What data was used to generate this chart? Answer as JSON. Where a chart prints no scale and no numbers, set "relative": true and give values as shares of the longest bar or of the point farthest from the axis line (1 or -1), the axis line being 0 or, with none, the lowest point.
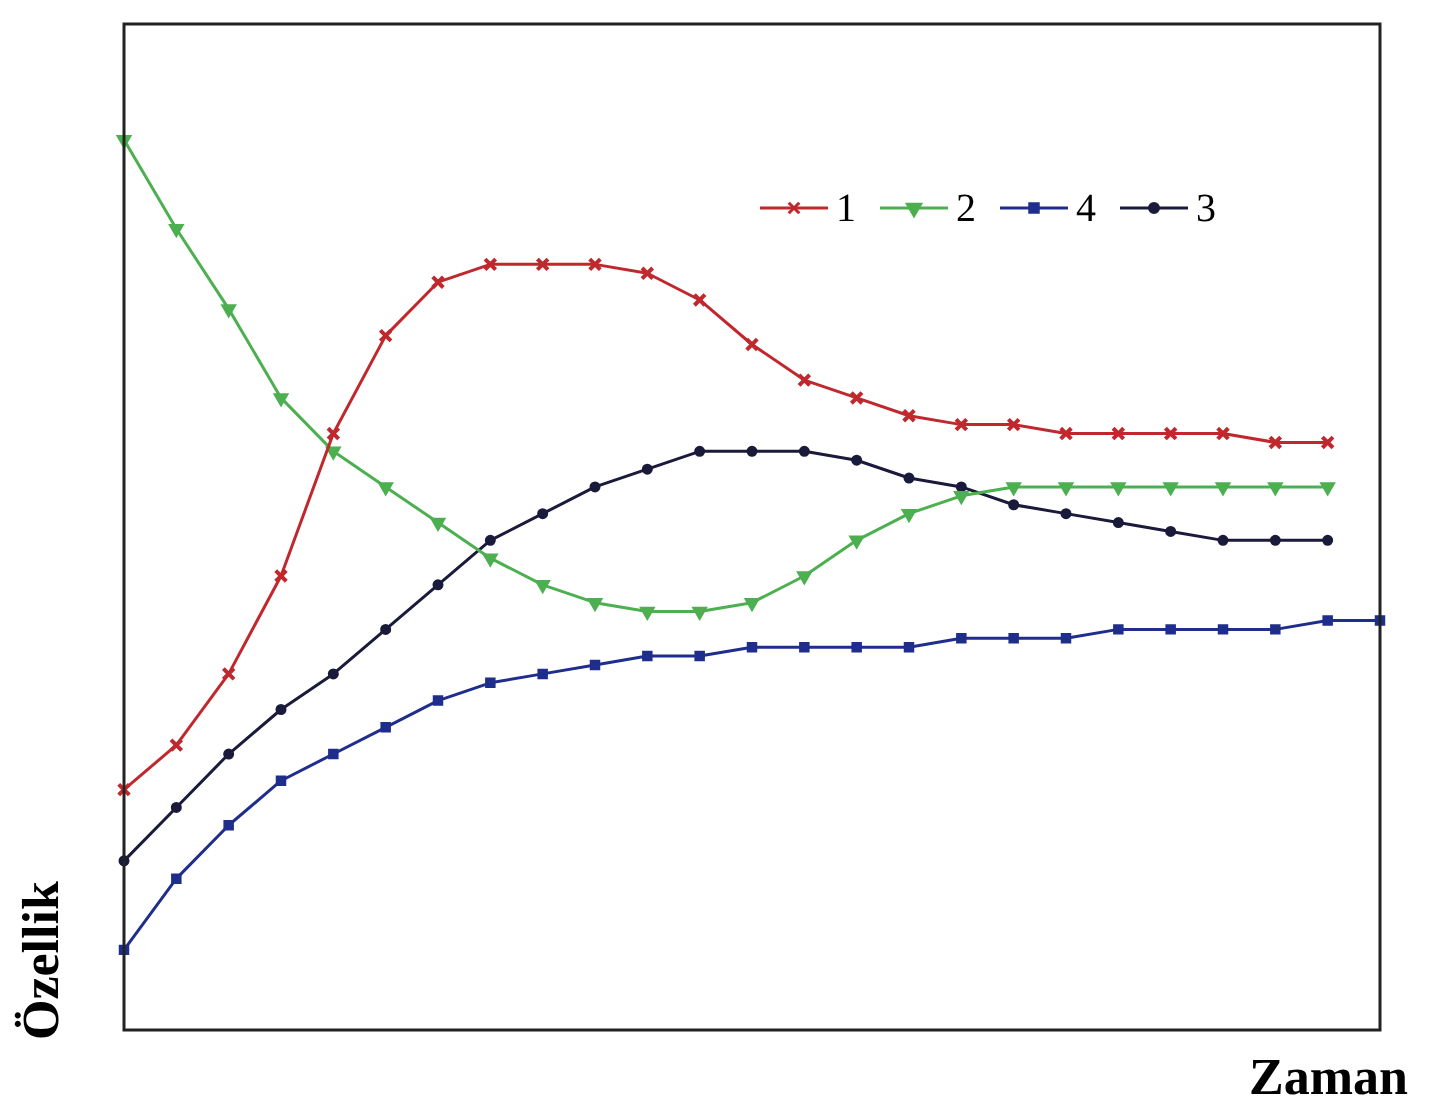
{
  "chart_data": {
    "type": "line",
    "relative": true,
    "xlabel": "Zaman",
    "ylabel": "Özellik",
    "legend": "top right",
    "grid": false,
    "categories": [
      null,
      null,
      null,
      null,
      null,
      null,
      null,
      null,
      null,
      null,
      null,
      null,
      null,
      null,
      null,
      null,
      null,
      null,
      null,
      null,
      null,
      null,
      null,
      null,
      null
    ],
    "series": [
      {
        "name": "1",
        "color": "#c0282d",
        "marker": "cross",
        "values": [
          0.27,
          0.32,
          0.4,
          0.51,
          0.67,
          0.78,
          0.84,
          0.86,
          0.86,
          0.86,
          0.85,
          0.82,
          0.77,
          0.73,
          0.71,
          0.69,
          0.68,
          0.68,
          0.67,
          0.67,
          0.67,
          0.67,
          0.66,
          0.66,
          null
        ]
      },
      {
        "name": "2",
        "color": "#4caf50",
        "marker": "triangle",
        "values": [
          1.0,
          0.9,
          0.81,
          0.71,
          0.65,
          0.61,
          0.57,
          0.53,
          0.5,
          0.48,
          0.47,
          0.47,
          0.48,
          0.51,
          0.55,
          0.58,
          0.6,
          0.61,
          0.61,
          0.61,
          0.61,
          0.61,
          0.61,
          0.61,
          null
        ]
      },
      {
        "name": "4",
        "color": "#1f2d8c",
        "marker": "square",
        "values": [
          0.09,
          0.17,
          0.23,
          0.28,
          0.31,
          0.34,
          0.37,
          0.39,
          0.4,
          0.41,
          0.42,
          0.42,
          0.43,
          0.43,
          0.43,
          0.43,
          0.44,
          0.44,
          0.44,
          0.45,
          0.45,
          0.45,
          0.45,
          0.46,
          0.46
        ]
      },
      {
        "name": "3",
        "color": "#1a1a3a",
        "marker": "circle",
        "values": [
          0.19,
          0.25,
          0.31,
          0.36,
          0.4,
          0.45,
          0.5,
          0.55,
          0.58,
          0.61,
          0.63,
          0.65,
          0.65,
          0.65,
          0.64,
          0.62,
          0.61,
          0.59,
          0.58,
          0.57,
          0.56,
          0.55,
          0.55,
          0.55,
          null
        ]
      }
    ]
  }
}
